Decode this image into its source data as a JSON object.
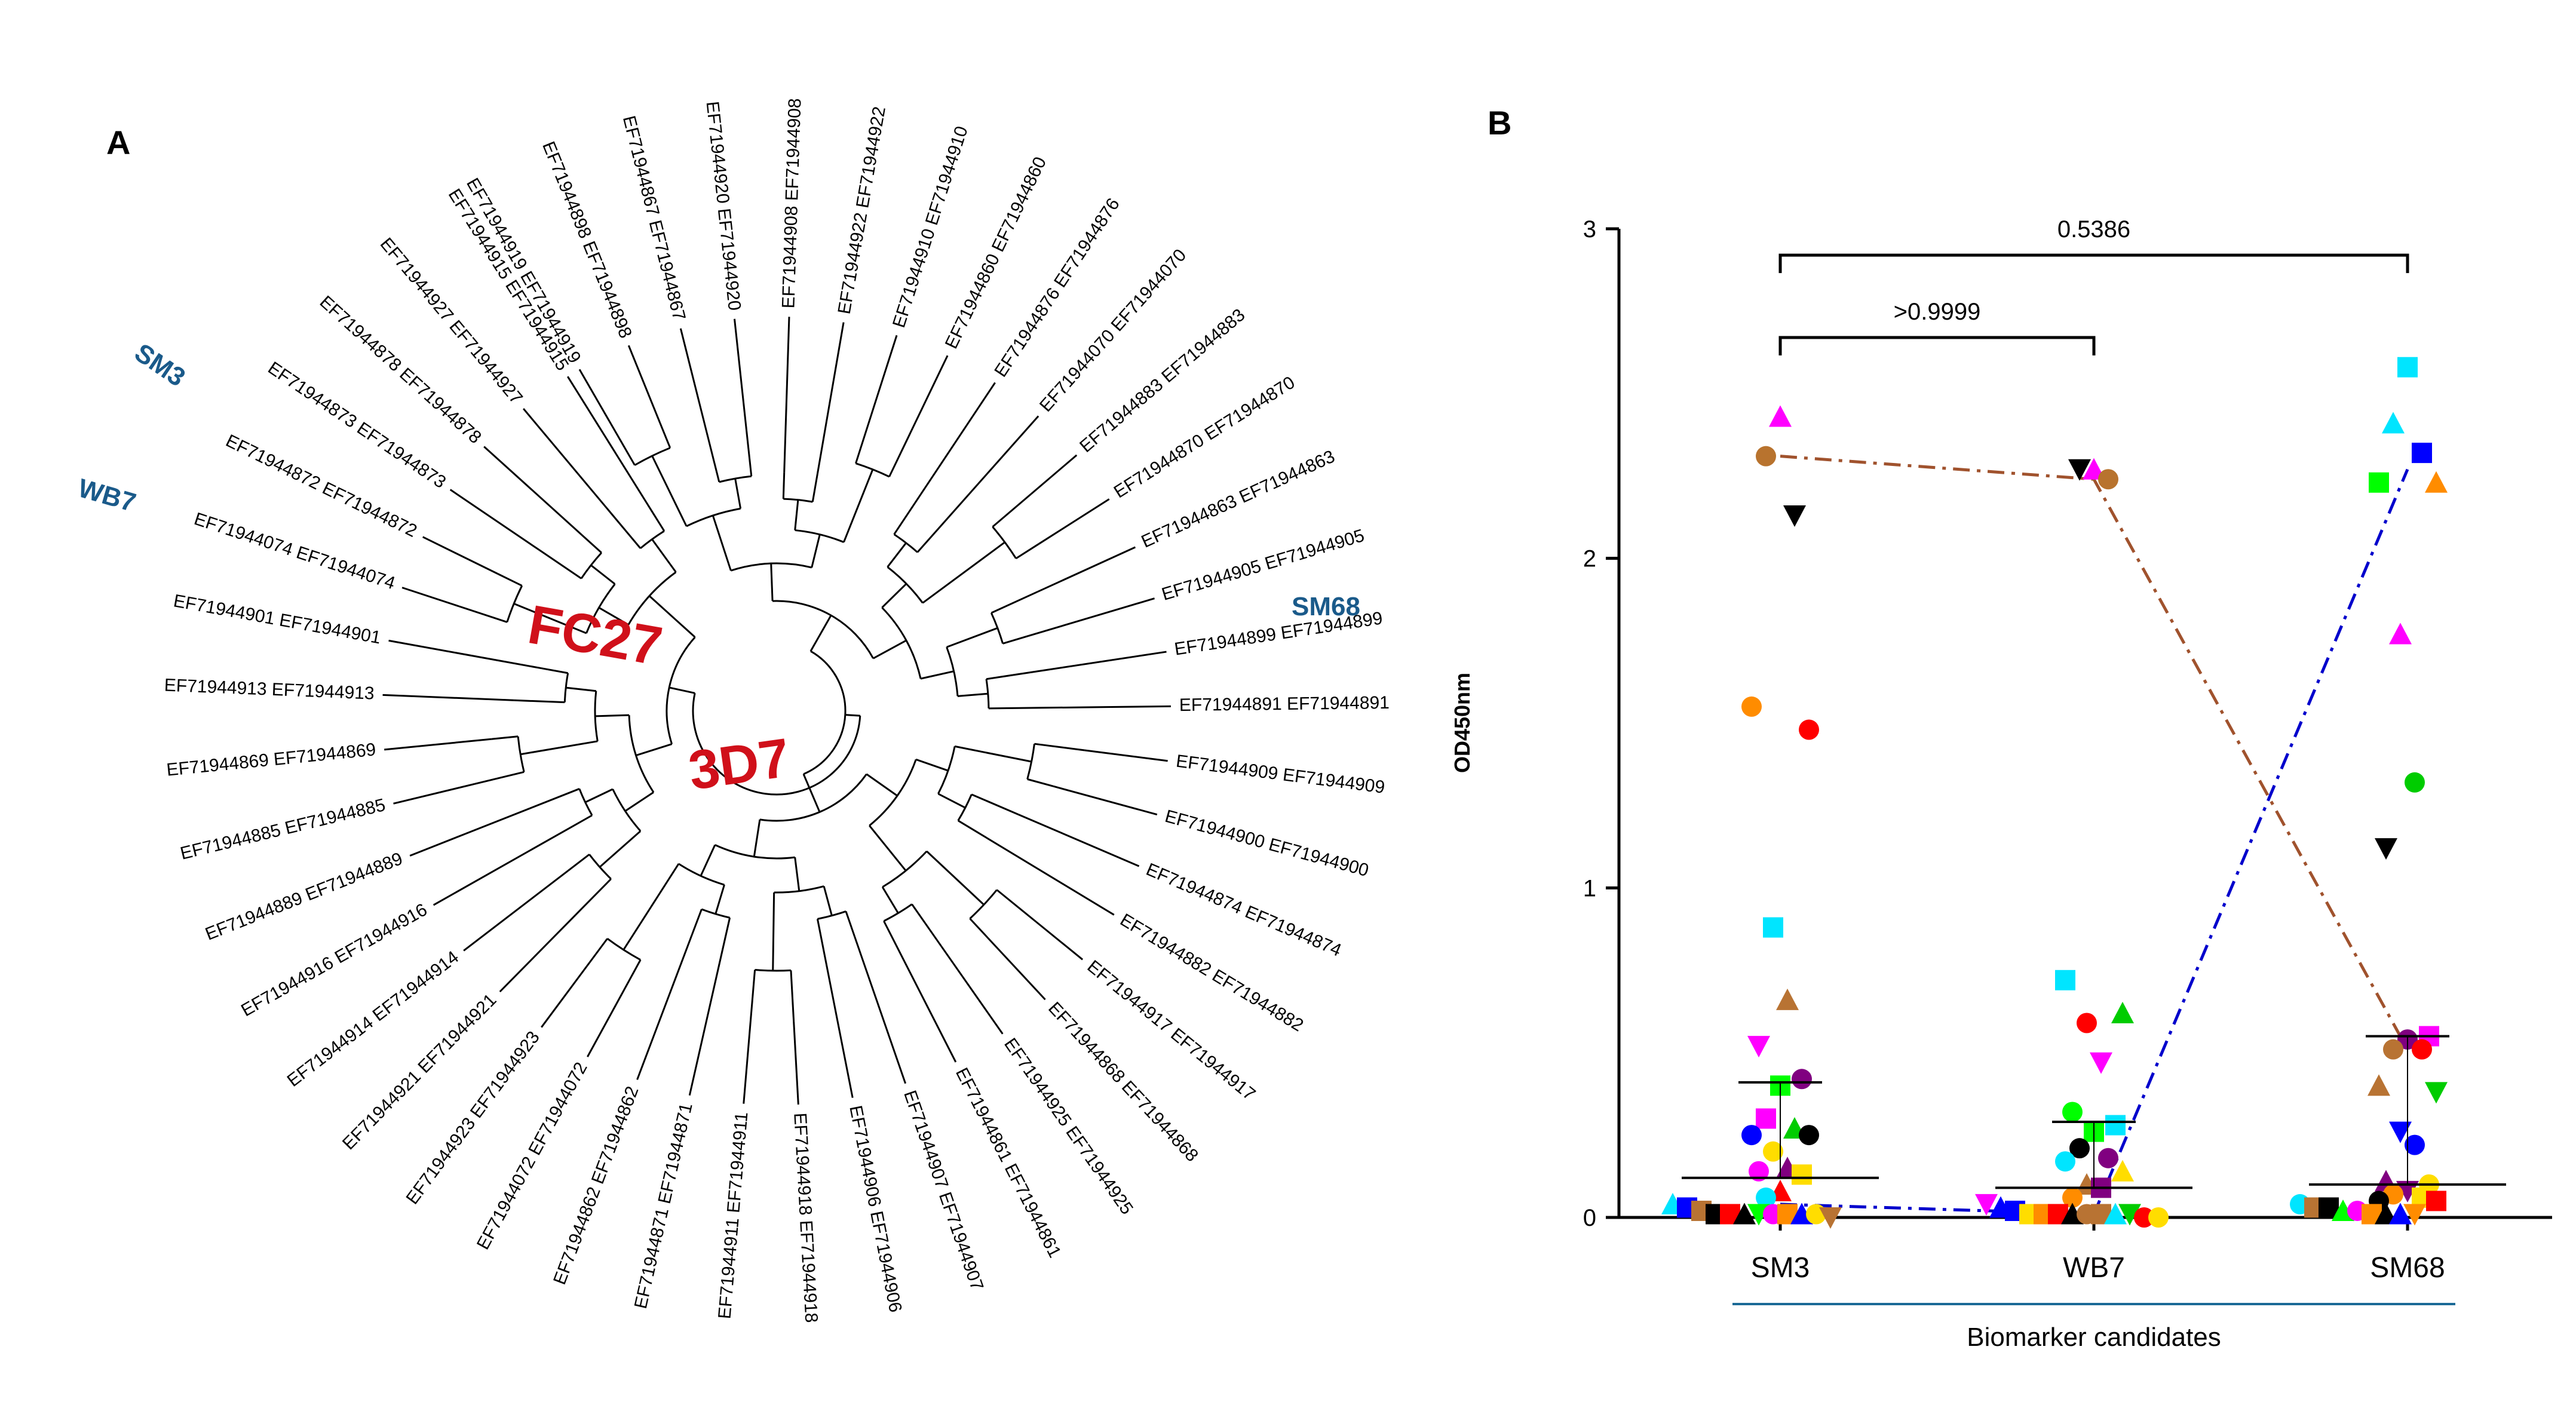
{
  "panel_a": {
    "label": "A",
    "strain_labels": [
      "FC27",
      "3D7"
    ],
    "highlighted": [
      "SM3",
      "WB7",
      "SM68"
    ],
    "leaves": [
      "EF71944919 EF71944919",
      "EF71944898 EF71944898",
      "EF71944867 EF71944867",
      "EF71944920 EF71944920",
      "EF71944908 EF71944908",
      "EF71944922 EF71944922",
      "EF71944910 EF71944910",
      "EF71944860 EF71944860",
      "EF71944876 EF71944876",
      "EF71944070 EF71944070",
      "EF71944883 EF71944883",
      "EF71944870 EF71944870",
      "EF71944863 EF71944863",
      "EF71944905 EF71944905",
      "EF71944899 EF71944899",
      "EF71944891 EF71944891",
      "EF71944909 EF71944909",
      "EF71944900 EF71944900",
      "EF71944874 EF71944874",
      "EF71944882 EF71944882",
      "EF71944917 EF71944917",
      "EF71944868 EF71944868",
      "EF71944925 EF71944925",
      "EF71944861 EF71944861",
      "EF71944907 EF71944907",
      "EF71944906 EF71944906",
      "EF71944918 EF71944918",
      "EF71944911 EF71944911",
      "EF71944871 EF71944871",
      "EF71944862 EF71944862",
      "EF71944072 EF71944072",
      "EF71944923 EF71944923",
      "EF71944921 EF71944921",
      "EF71944914 EF71944914",
      "EF71944916 EF71944916",
      "EF71944889 EF71944889",
      "EF71944885 EF71944885",
      "EF71944869 EF71944869",
      "EF71944913 EF71944913",
      "EF71944901 EF71944901",
      "EF71944074 EF71944074",
      "EF71944872 EF71944872",
      "EF71944873 EF71944873",
      "EF71944878 EF71944878",
      "EF71944927 EF71944927",
      "EF71944915 EF71944915"
    ]
  },
  "chart_data": {
    "type": "scatter",
    "panel_label": "B",
    "title": "",
    "ylabel": "OD450nm",
    "xlabel": "Biomarker candidates",
    "categories": [
      "SM3",
      "WB7",
      "SM68"
    ],
    "ylim": [
      0,
      3
    ],
    "yticks": [
      0,
      1,
      2,
      3
    ],
    "comparisons": [
      {
        "from": "SM3",
        "to": "WB7",
        "label": ">0.9999"
      },
      {
        "from": "SM3",
        "to": "SM68",
        "label": "0.5386"
      }
    ],
    "summary": {
      "SM3": {
        "center": 0.12,
        "upper": 0.41
      },
      "WB7": {
        "center": 0.09,
        "upper": 0.29
      },
      "SM68": {
        "center": 0.1,
        "upper": 0.55
      }
    },
    "series": [
      {
        "name": "SM3 samples",
        "category": "SM3",
        "values": [
          {
            "y": 2.43,
            "shape": "triangle",
            "color": "#ff00ff"
          },
          {
            "y": 2.31,
            "shape": "circle",
            "color": "#b8732e"
          },
          {
            "y": 2.13,
            "shape": "tri-down",
            "color": "#000000"
          },
          {
            "y": 1.55,
            "shape": "circle",
            "color": "#ff8c00"
          },
          {
            "y": 1.48,
            "shape": "circle",
            "color": "#ff0000"
          },
          {
            "y": 0.88,
            "shape": "square",
            "color": "#00e5ff"
          },
          {
            "y": 0.66,
            "shape": "triangle",
            "color": "#b87333"
          },
          {
            "y": 0.52,
            "shape": "tri-down",
            "color": "#ff00ff"
          },
          {
            "y": 0.42,
            "shape": "circle",
            "color": "#800080"
          },
          {
            "y": 0.4,
            "shape": "square",
            "color": "#00ff00"
          },
          {
            "y": 0.3,
            "shape": "square",
            "color": "#ff00ff"
          },
          {
            "y": 0.27,
            "shape": "triangle",
            "color": "#00cc00"
          },
          {
            "y": 0.25,
            "shape": "circle",
            "color": "#0000ff"
          },
          {
            "y": 0.25,
            "shape": "circle",
            "color": "#000000"
          },
          {
            "y": 0.2,
            "shape": "circle",
            "color": "#ffdd00"
          },
          {
            "y": 0.15,
            "shape": "triangle",
            "color": "#800080"
          },
          {
            "y": 0.14,
            "shape": "circle",
            "color": "#ff00ff"
          },
          {
            "y": 0.13,
            "shape": "square",
            "color": "#ffdd00"
          },
          {
            "y": 0.08,
            "shape": "triangle",
            "color": "#ff0000"
          },
          {
            "y": 0.06,
            "shape": "circle",
            "color": "#00e5ff"
          },
          {
            "y": 0.04,
            "shape": "triangle",
            "color": "#00e5ff"
          },
          {
            "y": 0.03,
            "shape": "square",
            "color": "#0000ff"
          },
          {
            "y": 0.02,
            "shape": "square",
            "color": "#b87333"
          },
          {
            "y": 0.01,
            "shape": "square",
            "color": "#000000"
          },
          {
            "y": 0.01,
            "shape": "square",
            "color": "#ff0000"
          },
          {
            "y": 0.01,
            "shape": "triangle",
            "color": "#000000"
          },
          {
            "y": 0.01,
            "shape": "tri-down",
            "color": "#00ff00"
          },
          {
            "y": 0.01,
            "shape": "circle",
            "color": "#ff00ff"
          },
          {
            "y": 0.01,
            "shape": "square",
            "color": "#ff8c00"
          },
          {
            "y": 0.01,
            "shape": "triangle",
            "color": "#0000ff"
          },
          {
            "y": 0.01,
            "shape": "circle",
            "color": "#ffdd00"
          },
          {
            "y": 0.0,
            "shape": "tri-down",
            "color": "#b87333"
          }
        ]
      },
      {
        "name": "WB7 samples",
        "category": "WB7",
        "values": [
          {
            "y": 2.27,
            "shape": "triangle",
            "color": "#ff00ff"
          },
          {
            "y": 2.27,
            "shape": "tri-down",
            "color": "#000000"
          },
          {
            "y": 2.24,
            "shape": "circle",
            "color": "#b8732e"
          },
          {
            "y": 0.72,
            "shape": "square",
            "color": "#00e5ff"
          },
          {
            "y": 0.62,
            "shape": "triangle",
            "color": "#00cc00"
          },
          {
            "y": 0.59,
            "shape": "circle",
            "color": "#ff0000"
          },
          {
            "y": 0.47,
            "shape": "tri-down",
            "color": "#ff00ff"
          },
          {
            "y": 0.32,
            "shape": "circle",
            "color": "#00ff00"
          },
          {
            "y": 0.28,
            "shape": "square",
            "color": "#00e5ff"
          },
          {
            "y": 0.26,
            "shape": "square",
            "color": "#00ff00"
          },
          {
            "y": 0.21,
            "shape": "circle",
            "color": "#000000"
          },
          {
            "y": 0.18,
            "shape": "circle",
            "color": "#800080"
          },
          {
            "y": 0.17,
            "shape": "circle",
            "color": "#00e5ff"
          },
          {
            "y": 0.14,
            "shape": "triangle",
            "color": "#ffdd00"
          },
          {
            "y": 0.1,
            "shape": "triangle",
            "color": "#b87333"
          },
          {
            "y": 0.09,
            "shape": "square",
            "color": "#800080"
          },
          {
            "y": 0.06,
            "shape": "circle",
            "color": "#ff8c00"
          },
          {
            "y": 0.04,
            "shape": "tri-down",
            "color": "#ff00ff"
          },
          {
            "y": 0.03,
            "shape": "triangle",
            "color": "#0000ff"
          },
          {
            "y": 0.02,
            "shape": "square",
            "color": "#0000ff"
          },
          {
            "y": 0.01,
            "shape": "square",
            "color": "#ffdd00"
          },
          {
            "y": 0.01,
            "shape": "square",
            "color": "#ff8c00"
          },
          {
            "y": 0.01,
            "shape": "square",
            "color": "#ff0000"
          },
          {
            "y": 0.01,
            "shape": "triangle",
            "color": "#000000"
          },
          {
            "y": 0.01,
            "shape": "circle",
            "color": "#b87333"
          },
          {
            "y": 0.01,
            "shape": "square",
            "color": "#b87333"
          },
          {
            "y": 0.01,
            "shape": "triangle",
            "color": "#00e5ff"
          },
          {
            "y": 0.01,
            "shape": "tri-down",
            "color": "#00cc00"
          },
          {
            "y": 0.0,
            "shape": "circle",
            "color": "#ff0000"
          },
          {
            "y": 0.0,
            "shape": "circle",
            "color": "#ffdd00"
          }
        ]
      },
      {
        "name": "SM68 samples",
        "category": "SM68",
        "values": [
          {
            "y": 2.58,
            "shape": "square",
            "color": "#00e5ff"
          },
          {
            "y": 2.41,
            "shape": "triangle",
            "color": "#00e5ff"
          },
          {
            "y": 2.32,
            "shape": "square",
            "color": "#0000ff"
          },
          {
            "y": 2.23,
            "shape": "square",
            "color": "#00ff00"
          },
          {
            "y": 2.23,
            "shape": "triangle",
            "color": "#ff8c00"
          },
          {
            "y": 1.77,
            "shape": "triangle",
            "color": "#ff00ff"
          },
          {
            "y": 1.32,
            "shape": "circle",
            "color": "#00cc00"
          },
          {
            "y": 1.12,
            "shape": "tri-down",
            "color": "#000000"
          },
          {
            "y": 0.55,
            "shape": "square",
            "color": "#ff00ff"
          },
          {
            "y": 0.54,
            "shape": "circle",
            "color": "#800080"
          },
          {
            "y": 0.51,
            "shape": "circle",
            "color": "#b87333"
          },
          {
            "y": 0.51,
            "shape": "circle",
            "color": "#ff0000"
          },
          {
            "y": 0.4,
            "shape": "triangle",
            "color": "#b87333"
          },
          {
            "y": 0.38,
            "shape": "tri-down",
            "color": "#00cc00"
          },
          {
            "y": 0.26,
            "shape": "tri-down",
            "color": "#0000ff"
          },
          {
            "y": 0.22,
            "shape": "circle",
            "color": "#0000ff"
          },
          {
            "y": 0.11,
            "shape": "triangle",
            "color": "#800080"
          },
          {
            "y": 0.1,
            "shape": "circle",
            "color": "#ffdd00"
          },
          {
            "y": 0.08,
            "shape": "tri-down",
            "color": "#800080"
          },
          {
            "y": 0.07,
            "shape": "circle",
            "color": "#ff8c00"
          },
          {
            "y": 0.06,
            "shape": "square",
            "color": "#ffdd00"
          },
          {
            "y": 0.05,
            "shape": "circle",
            "color": "#000000"
          },
          {
            "y": 0.05,
            "shape": "square",
            "color": "#ff0000"
          },
          {
            "y": 0.04,
            "shape": "circle",
            "color": "#00e5ff"
          },
          {
            "y": 0.03,
            "shape": "square",
            "color": "#b87333"
          },
          {
            "y": 0.03,
            "shape": "square",
            "color": "#000000"
          },
          {
            "y": 0.02,
            "shape": "triangle",
            "color": "#00ff00"
          },
          {
            "y": 0.02,
            "shape": "circle",
            "color": "#ff00ff"
          },
          {
            "y": 0.01,
            "shape": "square",
            "color": "#ff8c00"
          },
          {
            "y": 0.01,
            "shape": "triangle",
            "color": "#000000"
          },
          {
            "y": 0.01,
            "shape": "triangle",
            "color": "#0000ff"
          },
          {
            "y": 0.01,
            "shape": "tri-down",
            "color": "#ff8c00"
          }
        ]
      }
    ],
    "trend_lines": [
      {
        "name": "brown dash-dot",
        "color": "#a0522d",
        "values": [
          2.31,
          2.24,
          0.51
        ]
      },
      {
        "name": "blue dash-dot",
        "color": "#0000cc",
        "values": [
          0.04,
          0.01,
          2.27
        ]
      }
    ]
  }
}
